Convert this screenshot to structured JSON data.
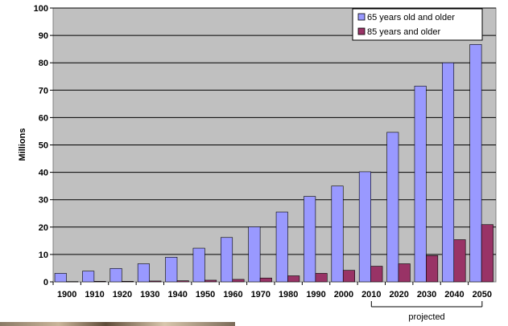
{
  "chart_data": {
    "type": "bar",
    "title": "",
    "ylabel": "Millions",
    "xlabel": "",
    "ylim": [
      0,
      100
    ],
    "yticks": [
      0,
      10,
      20,
      30,
      40,
      50,
      60,
      70,
      80,
      90,
      100
    ],
    "categories": [
      "1900",
      "1910",
      "1920",
      "1930",
      "1940",
      "1950",
      "1960",
      "1970",
      "1980",
      "1990",
      "2000",
      "2010",
      "2020",
      "2030",
      "2040",
      "2050"
    ],
    "series": [
      {
        "name": "65 years old and older",
        "color": "#9999ff",
        "values": [
          3.1,
          3.9,
          4.9,
          6.6,
          9.0,
          12.3,
          16.2,
          20.1,
          25.5,
          31.2,
          35.0,
          40.2,
          54.6,
          71.5,
          80.0,
          86.7
        ]
      },
      {
        "name": "85 years and older",
        "color": "#993366",
        "values": [
          0.1,
          0.2,
          0.2,
          0.3,
          0.4,
          0.6,
          0.9,
          1.4,
          2.2,
          3.1,
          4.2,
          5.7,
          6.6,
          9.6,
          15.4,
          20.9
        ]
      }
    ],
    "grid": true,
    "legend_position": "top-right",
    "annotation": {
      "text": "projected",
      "from": "2010",
      "to": "2050"
    },
    "colors": {
      "plot_background": "#c0c0c0",
      "gridline": "#000000"
    }
  }
}
